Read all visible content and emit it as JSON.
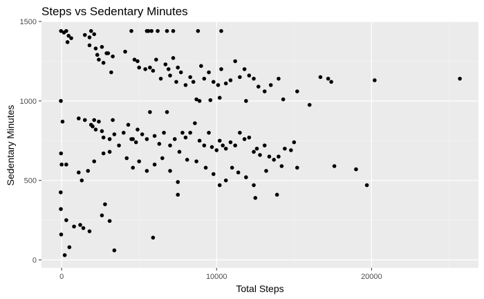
{
  "colors": {
    "panel_background": "#ebebeb",
    "gridline_major": "#ffffff",
    "gridline_minor": "#f5f5f5",
    "tick_color": "#333333",
    "tick_label_color": "#4d4d4d",
    "point_color": "#000000"
  },
  "chart_data": {
    "type": "scatter",
    "title": "Steps vs Sedentary Minutes",
    "xlabel": "Total Steps",
    "ylabel": "Sedentary Minutes",
    "xlim": [
      -1300,
      26900
    ],
    "ylim": [
      -50,
      1500
    ],
    "x_ticks": [
      0,
      10000,
      20000
    ],
    "x_tick_labels": [
      "0",
      "10000",
      "20000"
    ],
    "y_ticks": [
      0,
      500,
      1000,
      1500
    ],
    "y_tick_labels": [
      "0",
      "500",
      "1000",
      "1500"
    ],
    "x_minor_ticks": [
      5000,
      15000,
      25000
    ],
    "y_minor_ticks": [
      250,
      750,
      1250
    ],
    "grid": true,
    "legend": "none",
    "points": [
      [
        -40,
        1440
      ],
      [
        150,
        1430
      ],
      [
        300,
        1440
      ],
      [
        450,
        1410
      ],
      [
        380,
        1370
      ],
      [
        620,
        1395
      ],
      [
        1500,
        1415
      ],
      [
        1800,
        1400
      ],
      [
        1900,
        1440
      ],
      [
        2100,
        1420
      ],
      [
        1800,
        1350
      ],
      [
        2200,
        1330
      ],
      [
        2300,
        1290
      ],
      [
        2600,
        1340
      ],
      [
        2700,
        1240
      ],
      [
        2900,
        1300
      ],
      [
        3000,
        1300
      ],
      [
        2400,
        1260
      ],
      [
        3300,
        1280
      ],
      [
        3200,
        1180
      ],
      [
        4100,
        1310
      ],
      [
        4500,
        1440
      ],
      [
        4700,
        1260
      ],
      [
        4900,
        1250
      ],
      [
        5000,
        1210
      ],
      [
        5500,
        1440
      ],
      [
        5600,
        1440
      ],
      [
        5800,
        1440
      ],
      [
        6200,
        1440
      ],
      [
        6800,
        1440
      ],
      [
        7200,
        1440
      ],
      [
        8800,
        1440
      ],
      [
        10300,
        1440
      ],
      [
        5400,
        1200
      ],
      [
        5700,
        1210
      ],
      [
        5900,
        1190
      ],
      [
        6100,
        1260
      ],
      [
        6400,
        1140
      ],
      [
        6700,
        1230
      ],
      [
        6900,
        1200
      ],
      [
        7000,
        1160
      ],
      [
        7200,
        1270
      ],
      [
        7400,
        1120
      ],
      [
        7500,
        1210
      ],
      [
        7700,
        1180
      ],
      [
        8000,
        1100
      ],
      [
        8300,
        1150
      ],
      [
        8500,
        1120
      ],
      [
        9000,
        1220
      ],
      [
        9200,
        1140
      ],
      [
        9500,
        1180
      ],
      [
        9800,
        1120
      ],
      [
        10100,
        1100
      ],
      [
        10300,
        1200
      ],
      [
        10600,
        1110
      ],
      [
        10900,
        1130
      ],
      [
        11200,
        1250
      ],
      [
        11500,
        1150
      ],
      [
        11800,
        1200
      ],
      [
        12100,
        1160
      ],
      [
        12400,
        1140
      ],
      [
        12700,
        1090
      ],
      [
        13100,
        1060
      ],
      [
        13500,
        1100
      ],
      [
        14000,
        1140
      ],
      [
        14300,
        1010
      ],
      [
        8700,
        1010
      ],
      [
        8900,
        1000
      ],
      [
        9600,
        1005
      ],
      [
        10200,
        1020
      ],
      [
        11900,
        1000
      ],
      [
        15200,
        1060
      ],
      [
        16000,
        975
      ],
      [
        16700,
        1150
      ],
      [
        17200,
        1140
      ],
      [
        17400,
        1120
      ],
      [
        20200,
        1130
      ],
      [
        25700,
        1140
      ],
      [
        -50,
        1000
      ],
      [
        60,
        870
      ],
      [
        3300,
        880
      ],
      [
        1100,
        890
      ],
      [
        1500,
        880
      ],
      [
        1900,
        850
      ],
      [
        2000,
        840
      ],
      [
        2100,
        880
      ],
      [
        2200,
        820
      ],
      [
        2400,
        870
      ],
      [
        2600,
        810
      ],
      [
        2700,
        770
      ],
      [
        3100,
        760
      ],
      [
        3400,
        790
      ],
      [
        3700,
        720
      ],
      [
        4000,
        800
      ],
      [
        4300,
        850
      ],
      [
        4500,
        760
      ],
      [
        4600,
        760
      ],
      [
        4800,
        740
      ],
      [
        4900,
        820
      ],
      [
        5200,
        790
      ],
      [
        5500,
        760
      ],
      [
        5700,
        930
      ],
      [
        6000,
        780
      ],
      [
        6300,
        730
      ],
      [
        6600,
        800
      ],
      [
        6800,
        930
      ],
      [
        7000,
        720
      ],
      [
        7300,
        760
      ],
      [
        7600,
        680
      ],
      [
        7800,
        800
      ],
      [
        8000,
        770
      ],
      [
        8300,
        800
      ],
      [
        8600,
        860
      ],
      [
        8900,
        750
      ],
      [
        9200,
        720
      ],
      [
        9500,
        800
      ],
      [
        9700,
        710
      ],
      [
        10000,
        690
      ],
      [
        10200,
        750
      ],
      [
        10400,
        720
      ],
      [
        10600,
        700
      ],
      [
        10900,
        740
      ],
      [
        11200,
        720
      ],
      [
        11500,
        800
      ],
      [
        11800,
        760
      ],
      [
        12100,
        770
      ],
      [
        12400,
        680
      ],
      [
        12600,
        700
      ],
      [
        12800,
        660
      ],
      [
        13100,
        720
      ],
      [
        13400,
        650
      ],
      [
        13700,
        630
      ],
      [
        14000,
        650
      ],
      [
        14400,
        700
      ],
      [
        14800,
        690
      ],
      [
        15000,
        740
      ],
      [
        4200,
        640
      ],
      [
        4600,
        580
      ],
      [
        5000,
        620
      ],
      [
        5500,
        560
      ],
      [
        6000,
        600
      ],
      [
        6500,
        640
      ],
      [
        7000,
        560
      ],
      [
        7500,
        490
      ],
      [
        7500,
        410
      ],
      [
        8100,
        630
      ],
      [
        8700,
        620
      ],
      [
        9300,
        580
      ],
      [
        9800,
        540
      ],
      [
        10200,
        470
      ],
      [
        10600,
        500
      ],
      [
        11000,
        580
      ],
      [
        11400,
        550
      ],
      [
        11900,
        520
      ],
      [
        12400,
        470
      ],
      [
        12500,
        390
      ],
      [
        13200,
        560
      ],
      [
        13900,
        410
      ],
      [
        14200,
        590
      ],
      [
        15200,
        580
      ],
      [
        17600,
        590
      ],
      [
        19000,
        570
      ],
      [
        19700,
        470
      ],
      [
        0,
        600
      ],
      [
        300,
        600
      ],
      [
        -40,
        670
      ],
      [
        1100,
        550
      ],
      [
        1300,
        500
      ],
      [
        1700,
        560
      ],
      [
        2100,
        620
      ],
      [
        2700,
        670
      ],
      [
        3100,
        680
      ],
      [
        -50,
        320
      ],
      [
        -60,
        425
      ],
      [
        300,
        250
      ],
      [
        800,
        210
      ],
      [
        1200,
        220
      ],
      [
        1400,
        200
      ],
      [
        2600,
        280
      ],
      [
        2800,
        350
      ],
      [
        3100,
        245
      ],
      [
        1800,
        180
      ],
      [
        -30,
        160
      ],
      [
        200,
        30
      ],
      [
        500,
        80
      ],
      [
        3400,
        60
      ],
      [
        5900,
        140
      ]
    ]
  }
}
